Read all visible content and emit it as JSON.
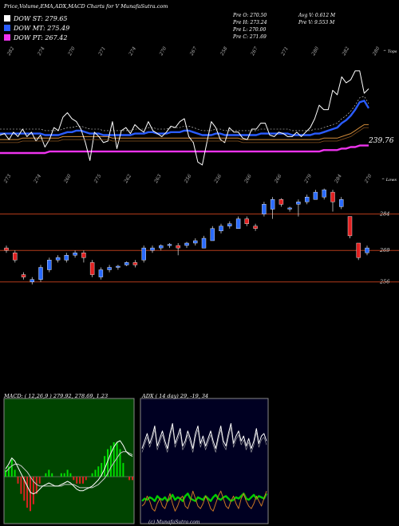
{
  "header": {
    "title": "Price,Volume,EMA,ADX,MACD Charts for V MunafaSutra.com"
  },
  "legend": [
    {
      "label": "DOW ST: 279.65",
      "color": "#ffffff"
    },
    {
      "label": "DOW MT: 275.49",
      "color": "#2a5cff"
    },
    {
      "label": "DOW PT: 267.42",
      "color": "#ee33ee"
    }
  ],
  "ohlc": {
    "open": "Pre  O: 270.50",
    "high": "Pre  H: 273.24",
    "low": "Pre  L: 270.00",
    "close": "Pre  C: 271.69",
    "avg_vol": "Avg V: 0.612  M",
    "pre_vol": "Pre  V: 9.553  M"
  },
  "top_tag": "^ Tops",
  "low_tag": "^ Lows",
  "ema_label": "239.76",
  "macd_caption": "MACD: ( 12,26,9 ) 279.92,  278.69,  1.23",
  "adx_caption": "ADX     ( 14  day) 29,  -19,  34",
  "copyright": "(c) MunafaSutra.com",
  "chart_data": [
    {
      "type": "line",
      "name": "price-ema-panel",
      "top_labels": [
        "282",
        "274",
        "270",
        "271",
        "274",
        "270",
        "267",
        "258",
        "267",
        "271",
        "280",
        "282",
        "280"
      ],
      "low_labels": [
        "273",
        "274",
        "260",
        "275",
        "262",
        "263",
        "256",
        "256",
        "266",
        "266",
        "279",
        "284",
        "270"
      ],
      "series": [
        {
          "name": "close",
          "color": "#ffffff",
          "values": [
            253,
            254,
            250,
            255,
            252,
            257,
            252,
            255,
            249,
            253,
            245,
            250,
            258,
            256,
            265,
            268,
            264,
            262,
            257,
            248,
            236,
            255,
            252,
            248,
            249,
            262,
            244,
            256,
            258,
            254,
            260,
            257,
            255,
            262,
            256,
            254,
            252,
            255,
            259,
            258,
            262,
            264,
            252,
            248,
            235,
            233,
            248,
            262,
            258,
            250,
            248,
            258,
            255,
            255,
            251,
            250,
            257,
            257,
            261,
            261,
            253,
            252,
            255,
            254,
            252,
            252,
            255,
            252,
            255,
            258,
            264,
            273,
            270,
            270,
            283,
            280,
            292,
            288,
            290,
            296,
            296,
            281,
            284
          ]
        },
        {
          "name": "ema-fast",
          "color": "#2a5cff",
          "values": [
            254,
            254,
            254,
            254,
            254,
            254,
            254,
            254,
            254,
            254,
            253,
            253,
            253,
            253,
            254,
            255,
            255,
            256,
            256,
            255,
            254,
            254,
            254,
            253,
            253,
            253,
            253,
            253,
            253,
            253,
            254,
            254,
            254,
            255,
            255,
            254,
            254,
            254,
            255,
            255,
            255,
            256,
            256,
            255,
            254,
            253,
            253,
            253,
            254,
            254,
            253,
            253,
            253,
            253,
            253,
            253,
            253,
            253,
            254,
            254,
            254,
            254,
            254,
            254,
            254,
            253,
            253,
            253,
            253,
            253,
            254,
            254,
            255,
            256,
            257,
            258,
            261,
            263,
            266,
            270,
            275,
            276,
            271
          ]
        },
        {
          "name": "ema-mid",
          "color": "#d08a3a",
          "values": [
            250,
            250,
            250,
            250,
            250,
            251,
            251,
            251,
            251,
            251,
            251,
            251,
            251,
            251,
            252,
            252,
            252,
            252,
            252,
            252,
            252,
            252,
            252,
            252,
            252,
            251,
            251,
            251,
            251,
            251,
            251,
            251,
            251,
            251,
            251,
            251,
            251,
            251,
            251,
            251,
            251,
            251,
            251,
            251,
            251,
            251,
            251,
            251,
            251,
            251,
            251,
            251,
            251,
            251,
            250,
            250,
            250,
            250,
            250,
            250,
            250,
            250,
            250,
            250,
            250,
            250,
            250,
            250,
            250,
            250,
            250,
            250,
            251,
            251,
            251,
            251,
            252,
            253,
            254,
            256,
            258,
            260,
            260
          ]
        },
        {
          "name": "ema-slow",
          "color": "#ee33ee",
          "values": [
            241,
            241,
            241,
            241,
            241,
            241,
            241,
            241,
            241,
            241,
            241,
            242,
            242,
            242,
            242,
            242,
            242,
            242,
            242,
            242,
            242,
            242,
            242,
            242,
            242,
            242,
            242,
            242,
            242,
            242,
            242,
            242,
            242,
            242,
            242,
            242,
            242,
            242,
            242,
            242,
            242,
            242,
            242,
            242,
            242,
            242,
            242,
            242,
            242,
            242,
            242,
            242,
            242,
            242,
            242,
            242,
            242,
            242,
            242,
            242,
            242,
            242,
            242,
            242,
            242,
            242,
            242,
            242,
            242,
            242,
            242,
            242,
            243,
            243,
            243,
            243,
            244,
            244,
            245,
            245,
            246,
            246,
            246
          ]
        }
      ],
      "ylim": [
        225,
        305
      ]
    },
    {
      "type": "candlestick",
      "name": "candle-panel",
      "axis_labels": [
        "284",
        "269",
        "256"
      ],
      "candles": [
        {
          "o": 270,
          "c": 269,
          "h": 271,
          "l": 268
        },
        {
          "o": 268,
          "c": 265,
          "h": 269,
          "l": 264
        },
        {
          "o": 259,
          "c": 258,
          "h": 260,
          "l": 257
        },
        {
          "o": 256,
          "c": 257,
          "h": 258,
          "l": 255
        },
        {
          "o": 257,
          "c": 262,
          "h": 263,
          "l": 256
        },
        {
          "o": 261,
          "c": 265,
          "h": 266,
          "l": 260
        },
        {
          "o": 265,
          "c": 266,
          "h": 267,
          "l": 264
        },
        {
          "o": 265,
          "c": 267,
          "h": 268,
          "l": 264
        },
        {
          "o": 267,
          "c": 268,
          "h": 269,
          "l": 266
        },
        {
          "o": 268,
          "c": 266,
          "h": 269,
          "l": 264
        },
        {
          "o": 264,
          "c": 259,
          "h": 265,
          "l": 258
        },
        {
          "o": 258,
          "c": 261,
          "h": 262,
          "l": 257
        },
        {
          "o": 261,
          "c": 262,
          "h": 263,
          "l": 260
        },
        {
          "o": 262,
          "c": 262.5,
          "h": 263,
          "l": 261
        },
        {
          "o": 263,
          "c": 264,
          "h": 264.5,
          "l": 262.5
        },
        {
          "o": 264,
          "c": 263,
          "h": 265,
          "l": 262
        },
        {
          "o": 265,
          "c": 270,
          "h": 271,
          "l": 264
        },
        {
          "o": 269,
          "c": 270,
          "h": 271,
          "l": 268
        },
        {
          "o": 270,
          "c": 271,
          "h": 271.5,
          "l": 269
        },
        {
          "o": 271,
          "c": 271.5,
          "h": 272,
          "l": 270
        },
        {
          "o": 271,
          "c": 270,
          "h": 272,
          "l": 267
        },
        {
          "o": 271,
          "c": 272,
          "h": 272.5,
          "l": 270
        },
        {
          "o": 272,
          "c": 273,
          "h": 274,
          "l": 271
        },
        {
          "o": 270,
          "c": 274,
          "h": 275,
          "l": 270
        },
        {
          "o": 273,
          "c": 278,
          "h": 279,
          "l": 273
        },
        {
          "o": 277,
          "c": 279,
          "h": 280,
          "l": 276
        },
        {
          "o": 279,
          "c": 280,
          "h": 281,
          "l": 278
        },
        {
          "o": 278,
          "c": 282,
          "h": 283,
          "l": 278
        },
        {
          "o": 282,
          "c": 280,
          "h": 283,
          "l": 279
        },
        {
          "o": 279,
          "c": 278,
          "h": 280,
          "l": 277
        },
        {
          "o": 284,
          "c": 288,
          "h": 289,
          "l": 283
        },
        {
          "o": 286,
          "c": 290,
          "h": 291,
          "l": 282
        },
        {
          "o": 290,
          "c": 288,
          "h": 290.5,
          "l": 287
        },
        {
          "o": 286,
          "c": 286.5,
          "h": 287,
          "l": 285
        },
        {
          "o": 288,
          "c": 289,
          "h": 290,
          "l": 283
        },
        {
          "o": 289,
          "c": 291,
          "h": 292,
          "l": 288
        },
        {
          "o": 290,
          "c": 293,
          "h": 294,
          "l": 290
        },
        {
          "o": 291,
          "c": 294,
          "h": 294.5,
          "l": 290
        },
        {
          "o": 293,
          "c": 289,
          "h": 294,
          "l": 285
        },
        {
          "o": 287,
          "c": 290,
          "h": 291,
          "l": 286
        },
        {
          "o": 283,
          "c": 275,
          "h": 283,
          "l": 274
        },
        {
          "o": 272,
          "c": 266,
          "h": 272,
          "l": 265
        },
        {
          "o": 268,
          "c": 270,
          "h": 271,
          "l": 267
        }
      ],
      "ylim": [
        250,
        296
      ]
    },
    {
      "type": "area",
      "name": "macd-panel",
      "title": "MACD: ( 12,26,9 ) 279.92,  278.69,  1.23",
      "series": [
        {
          "name": "macd",
          "color": "#ffffff",
          "values": [
            0.5,
            0.8,
            1.2,
            1.0,
            0.6,
            0.2,
            -0.2,
            -0.6,
            -1.0,
            -1.1,
            -1.0,
            -0.8,
            -0.6,
            -0.5,
            -0.4,
            -0.5,
            -0.6,
            -0.6,
            -0.5,
            -0.4,
            -0.3,
            -0.4,
            -0.6,
            -0.8,
            -0.9,
            -0.9,
            -0.8,
            -0.7,
            -0.6,
            -0.4,
            -0.2,
            0.1,
            0.5,
            1.0,
            1.5,
            1.9,
            2.2,
            2.3,
            2.0,
            1.6,
            1.4,
            1.3
          ]
        },
        {
          "name": "signal",
          "color": "#cccccc",
          "values": [
            0.3,
            0.5,
            0.7,
            0.8,
            0.8,
            0.7,
            0.5,
            0.3,
            0.0,
            -0.3,
            -0.5,
            -0.6,
            -0.6,
            -0.6,
            -0.6,
            -0.6,
            -0.6,
            -0.6,
            -0.6,
            -0.5,
            -0.5,
            -0.5,
            -0.5,
            -0.6,
            -0.7,
            -0.7,
            -0.7,
            -0.7,
            -0.7,
            -0.6,
            -0.5,
            -0.3,
            -0.1,
            0.2,
            0.6,
            0.9,
            1.2,
            1.5,
            1.6,
            1.6,
            1.5,
            1.4
          ]
        }
      ],
      "ylim": [
        -3,
        5
      ]
    },
    {
      "type": "line",
      "name": "adx-panel",
      "title": "ADX     ( 14  day) 29,  -19,  34",
      "series": [
        {
          "name": "adx",
          "color": "#ffffff",
          "values": [
            60,
            66,
            72,
            64,
            70,
            78,
            62,
            68,
            74,
            66,
            60,
            72,
            80,
            64,
            70,
            76,
            62,
            66,
            74,
            68,
            60,
            72,
            78,
            64,
            70,
            62,
            68,
            74,
            66,
            60,
            70,
            78,
            66,
            62,
            72,
            80,
            64,
            70,
            74,
            66,
            70,
            62,
            68,
            60,
            66,
            76,
            64,
            70,
            72,
            66
          ]
        },
        {
          "name": "plus-di",
          "color": "#00cc00",
          "values": [
            18,
            20,
            19,
            21,
            20,
            18,
            22,
            20,
            19,
            21,
            18,
            20,
            23,
            19,
            21,
            20,
            18,
            22,
            24,
            20,
            19,
            18,
            21,
            20,
            19,
            22,
            20,
            18,
            21,
            23,
            20,
            19,
            21,
            22,
            20,
            18,
            19,
            21,
            20,
            22,
            24,
            20,
            19,
            21,
            23,
            20,
            22,
            21,
            20,
            24
          ]
        },
        {
          "name": "minus-di",
          "color": "#cc7722",
          "values": [
            14,
            16,
            22,
            18,
            12,
            10,
            16,
            20,
            14,
            12,
            18,
            24,
            16,
            10,
            14,
            20,
            22,
            14,
            12,
            18,
            26,
            20,
            14,
            12,
            16,
            22,
            18,
            12,
            10,
            16,
            22,
            26,
            20,
            14,
            12,
            18,
            22,
            16,
            12,
            20,
            24,
            18,
            14,
            12,
            16,
            22,
            18,
            14,
            20,
            26
          ]
        }
      ],
      "ylim": [
        0,
        100
      ]
    }
  ]
}
